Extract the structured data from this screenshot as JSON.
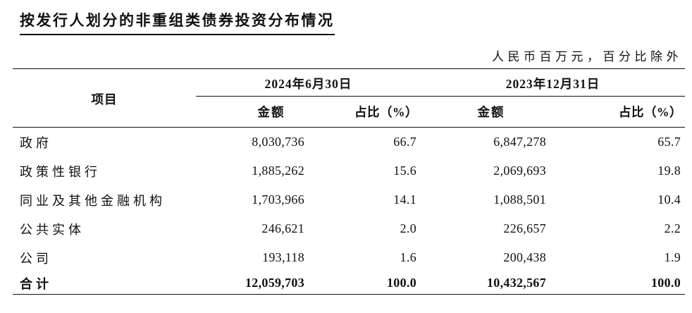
{
  "title": "按发行人划分的非重组类债券投资分布情况",
  "unit_note": "人民币百万元，百分比除外",
  "table": {
    "item_header": "项目",
    "period_groups": [
      {
        "label": "2024年6月30日",
        "amount_header": "金额",
        "ratio_header": "占比（%）"
      },
      {
        "label": "2023年12月31日",
        "amount_header": "金额",
        "ratio_header": "占比（%）"
      }
    ],
    "rows": [
      {
        "item": "政府",
        "amount_2024": "8,030,736",
        "ratio_2024": "66.7",
        "amount_2023": "6,847,278",
        "ratio_2023": "65.7"
      },
      {
        "item": "政策性银行",
        "amount_2024": "1,885,262",
        "ratio_2024": "15.6",
        "amount_2023": "2,069,693",
        "ratio_2023": "19.8"
      },
      {
        "item": "同业及其他金融机构",
        "amount_2024": "1,703,966",
        "ratio_2024": "14.1",
        "amount_2023": "1,088,501",
        "ratio_2023": "10.4"
      },
      {
        "item": "公共实体",
        "amount_2024": "246,621",
        "ratio_2024": "2.0",
        "amount_2023": "226,657",
        "ratio_2023": "2.2"
      },
      {
        "item": "公司",
        "amount_2024": "193,118",
        "ratio_2024": "1.6",
        "amount_2023": "200,438",
        "ratio_2023": "1.9"
      }
    ],
    "total_row": {
      "item": "合计",
      "amount_2024": "12,059,703",
      "ratio_2024": "100.0",
      "amount_2023": "10,432,567",
      "ratio_2023": "100.0"
    }
  }
}
